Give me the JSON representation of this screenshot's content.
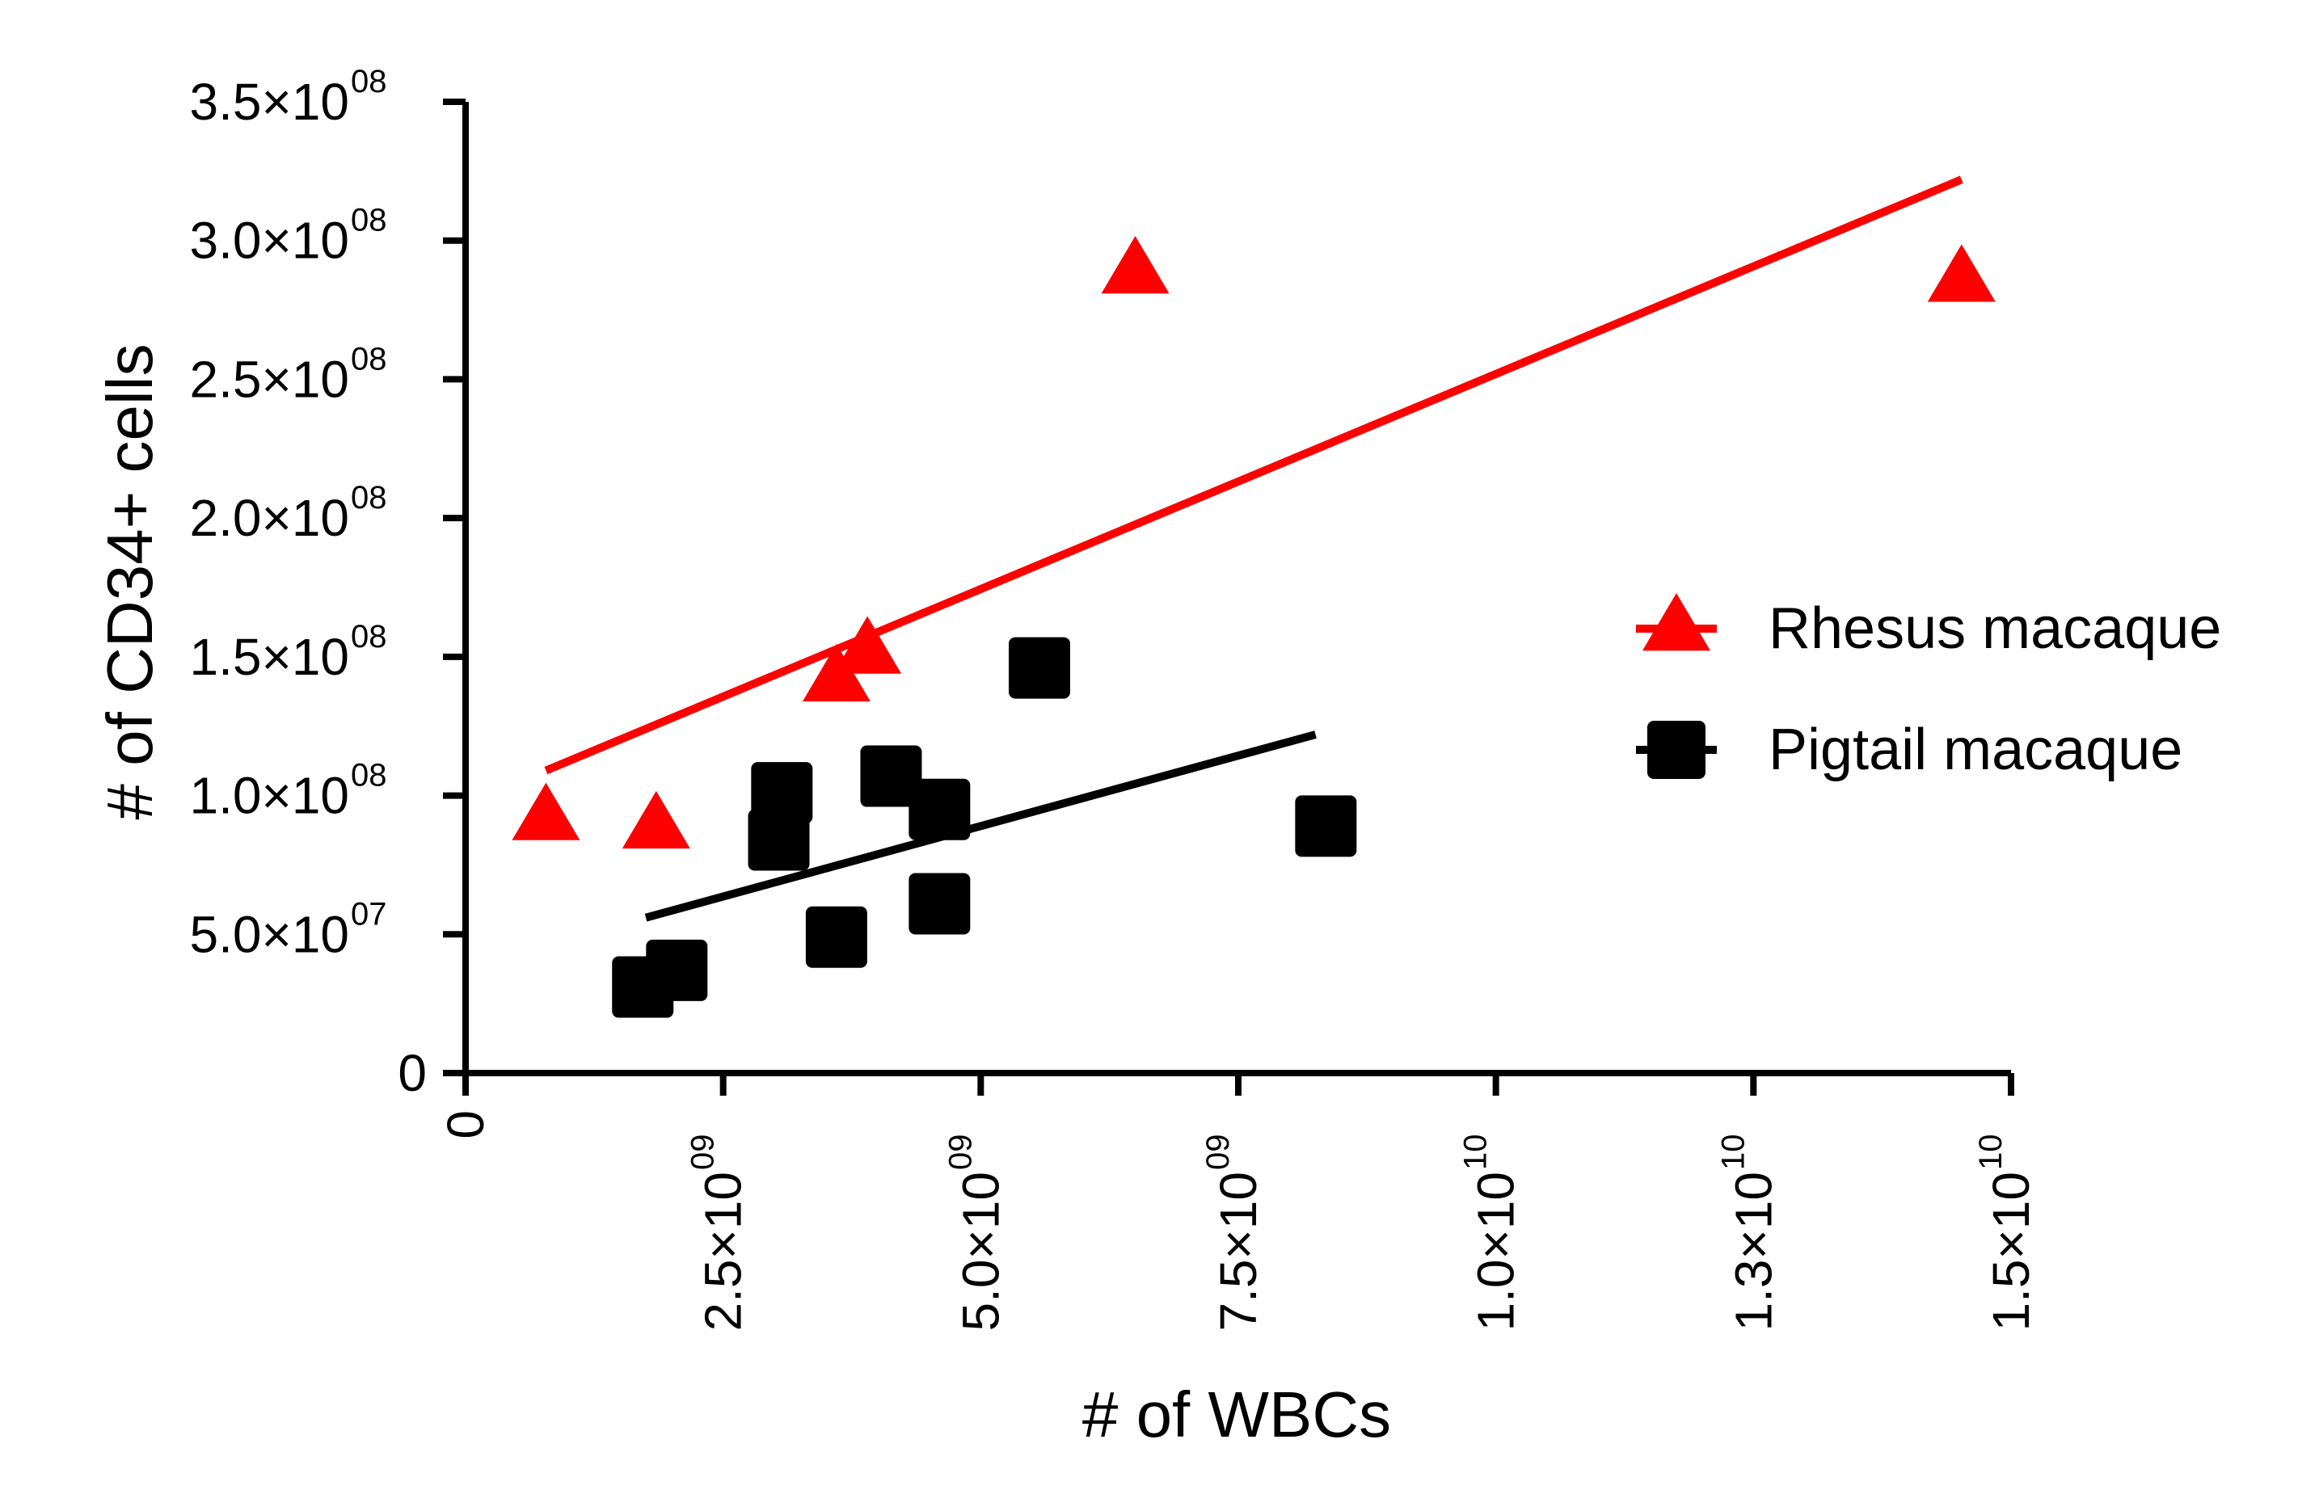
{
  "chart_data": {
    "type": "scatter",
    "title": "",
    "xlabel": "# of WBCs",
    "ylabel": "# of CD34+ cells",
    "xlim": [
      0,
      15000000000
    ],
    "ylim": [
      0,
      350000000
    ],
    "x_ticks": [
      {
        "value": 0,
        "mantissa": "0",
        "exp": ""
      },
      {
        "value": 2500000000,
        "mantissa": "2.5×10",
        "exp": "09"
      },
      {
        "value": 5000000000,
        "mantissa": "5.0×10",
        "exp": "09"
      },
      {
        "value": 7500000000,
        "mantissa": "7.5×10",
        "exp": "09"
      },
      {
        "value": 10000000000,
        "mantissa": "1.0×10",
        "exp": "10"
      },
      {
        "value": 12500000000,
        "mantissa": "1.3×10",
        "exp": "10"
      },
      {
        "value": 15000000000,
        "mantissa": "1.5×10",
        "exp": "10"
      }
    ],
    "y_ticks": [
      {
        "value": 0,
        "mantissa": "0",
        "exp": ""
      },
      {
        "value": 50000000,
        "mantissa": "5.0×10",
        "exp": "07"
      },
      {
        "value": 100000000,
        "mantissa": "1.0×10",
        "exp": "08"
      },
      {
        "value": 150000000,
        "mantissa": "1.5×10",
        "exp": "08"
      },
      {
        "value": 200000000,
        "mantissa": "2.0×10",
        "exp": "08"
      },
      {
        "value": 250000000,
        "mantissa": "2.5×10",
        "exp": "08"
      },
      {
        "value": 300000000,
        "mantissa": "3.0×10",
        "exp": "08"
      },
      {
        "value": 350000000,
        "mantissa": "3.5×10",
        "exp": "08"
      }
    ],
    "legend_position": "right",
    "series": [
      {
        "name": "Rhesus macaque",
        "marker": "triangle",
        "color": "#ff0000",
        "points": [
          {
            "x": 780000000,
            "y": 93000000
          },
          {
            "x": 1850000000,
            "y": 90000000
          },
          {
            "x": 3600000000,
            "y": 143000000
          },
          {
            "x": 3900000000,
            "y": 153000000
          },
          {
            "x": 6500000000,
            "y": 290000000
          },
          {
            "x": 14520000000,
            "y": 287000000
          }
        ],
        "fit": {
          "x_start": 780000000,
          "y_start": 109000000,
          "x_end": 14520000000,
          "y_end": 322000000
        }
      },
      {
        "name": "Pigtail macaque",
        "marker": "square",
        "color": "#000000",
        "points": [
          {
            "x": 1720000000,
            "y": 31000000
          },
          {
            "x": 2050000000,
            "y": 37000000
          },
          {
            "x": 3070000000,
            "y": 101000000
          },
          {
            "x": 3040000000,
            "y": 84000000
          },
          {
            "x": 3600000000,
            "y": 49000000
          },
          {
            "x": 4130000000,
            "y": 107000000
          },
          {
            "x": 4600000000,
            "y": 95000000
          },
          {
            "x": 4600000000,
            "y": 61000000
          },
          {
            "x": 5570000000,
            "y": 146000000
          },
          {
            "x": 8350000000,
            "y": 89000000
          }
        ],
        "fit": {
          "x_start": 1750000000,
          "y_start": 56000000,
          "x_end": 8250000000,
          "y_end": 122000000
        }
      }
    ]
  }
}
